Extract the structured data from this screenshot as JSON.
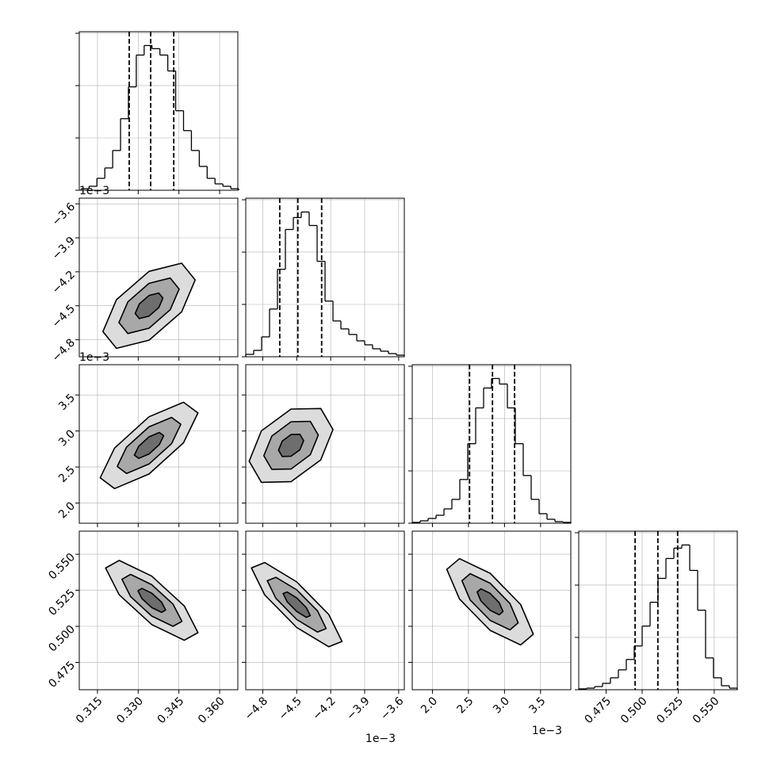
{
  "chart_data": {
    "type": "corner",
    "grid": true,
    "grid_color": "#b0b0b0",
    "line_color": "#000000",
    "contour_fills": [
      "#dcdcdc",
      "#a8a8a8",
      "#6e6e6e"
    ],
    "params": [
      {
        "lim": [
          0.3083,
          0.3667
        ],
        "ticks": [
          {
            "value": 0.315,
            "label": "0.315"
          },
          {
            "value": 0.33,
            "label": "0.330"
          },
          {
            "value": 0.345,
            "label": "0.345"
          },
          {
            "value": 0.36,
            "label": "0.360"
          }
        ]
      },
      {
        "lim": [
          -4.95,
          -3.55
        ],
        "offset": "1e−3",
        "ticks": [
          {
            "value": -4.8,
            "label": "−4.8"
          },
          {
            "value": -4.5,
            "label": "−4.5"
          },
          {
            "value": -4.2,
            "label": "−4.2"
          },
          {
            "value": -3.9,
            "label": "−3.9"
          },
          {
            "value": -3.6,
            "label": "−3.6"
          }
        ]
      },
      {
        "lim": [
          1.72,
          3.92
        ],
        "offset": "1e−3",
        "ticks": [
          {
            "value": 2,
            "label": "2.0"
          },
          2.5,
          {
            "value": 3,
            "label": "3.0"
          },
          3.5
        ]
      },
      {
        "lim": [
          0.456,
          0.566
        ],
        "ticks": [
          {
            "value": 0.475,
            "label": "0.475"
          },
          {
            "value": 0.5,
            "label": "0.500"
          },
          {
            "value": 0.525,
            "label": "0.525"
          },
          {
            "value": 0.55,
            "label": "0.550"
          }
        ]
      }
    ],
    "histograms": [
      {
        "ylim": [
          0,
          1515
        ],
        "yticks": [
          0,
          500,
          1000,
          1500
        ],
        "quantiles": [
          0.3267,
          0.3346,
          0.3431
        ],
        "bins": [
          0.309,
          0.3119,
          0.3148,
          0.3177,
          0.3206,
          0.3235,
          0.3264,
          0.3293,
          0.3322,
          0.3351,
          0.338,
          0.3409,
          0.3438,
          0.3467,
          0.3496,
          0.3525,
          0.3554,
          0.3583,
          0.3612,
          0.3641,
          0.367
        ],
        "counts": [
          15,
          38,
          114,
          213,
          380,
          684,
          988,
          1292,
          1383,
          1353,
          1292,
          1140,
          760,
          570,
          380,
          228,
          114,
          61,
          38,
          15
        ]
      },
      {
        "ylim": [
          0,
          1515
        ],
        "yticks": [
          0,
          500,
          1000,
          1500
        ],
        "quantiles": [
          -4.65,
          -4.49,
          -4.28
        ],
        "bins": [
          -4.95,
          -4.88,
          -4.81,
          -4.74,
          -4.67,
          -4.6,
          -4.53,
          -4.46,
          -4.39,
          -4.32,
          -4.25,
          -4.18,
          -4.11,
          -4.04,
          -3.97,
          -3.9,
          -3.83,
          -3.76,
          -3.69,
          -3.62,
          -3.55
        ],
        "counts": [
          23,
          61,
          190,
          456,
          836,
          1216,
          1330,
          1383,
          1254,
          912,
          532,
          342,
          266,
          213,
          152,
          114,
          76,
          53,
          30,
          15
        ]
      },
      {
        "ylim": [
          0,
          1515
        ],
        "yticks": [
          0,
          500,
          1000,
          1500
        ],
        "quantiles": [
          2.515,
          2.833,
          3.14
        ],
        "bins": [
          1.72,
          1.83,
          1.94,
          2.05,
          2.16,
          2.27,
          2.38,
          2.49,
          2.6,
          2.71,
          2.82,
          2.93,
          3.04,
          3.15,
          3.26,
          3.37,
          3.48,
          3.59,
          3.7,
          3.81,
          3.92
        ],
        "counts": [
          8,
          23,
          46,
          76,
          137,
          228,
          418,
          760,
          1102,
          1292,
          1383,
          1330,
          1102,
          760,
          456,
          228,
          91,
          38,
          15,
          8
        ]
      },
      {
        "ylim": [
          0,
          1515
        ],
        "yticks": [
          0,
          500,
          1000,
          1500
        ],
        "quantiles": [
          0.4951,
          0.5109,
          0.5246
        ],
        "bins": [
          0.456,
          0.4615,
          0.467,
          0.4725,
          0.478,
          0.4835,
          0.489,
          0.4945,
          0.5,
          0.5055,
          0.511,
          0.5165,
          0.522,
          0.5275,
          0.533,
          0.5385,
          0.544,
          0.5495,
          0.555,
          0.5605,
          0.566
        ],
        "counts": [
          8,
          15,
          30,
          61,
          114,
          190,
          289,
          418,
          608,
          836,
          1064,
          1254,
          1353,
          1383,
          1140,
          760,
          304,
          114,
          38,
          15
        ]
      }
    ],
    "pairs": [
      [
        {
          "contours": [
            {
              "x": [
                0.351,
                0.346,
                0.334,
                0.322,
                0.317,
                0.322,
                0.334,
                0.346
              ],
              "y": [
                -4.272,
                -4.124,
                -4.196,
                -4.446,
                -4.728,
                -4.876,
                -4.804,
                -4.554
              ]
            },
            {
              "x": [
                0.3451,
                0.3418,
                0.334,
                0.3262,
                0.3229,
                0.3262,
                0.334,
                0.3418
              ],
              "y": [
                -4.352,
                -4.255,
                -4.302,
                -4.465,
                -4.648,
                -4.745,
                -4.698,
                -4.535
              ]
            },
            {
              "x": [
                0.3391,
                0.3376,
                0.334,
                0.3304,
                0.3289,
                0.3304,
                0.334,
                0.3376
              ],
              "y": [
                -4.432,
                -4.387,
                -4.409,
                -4.484,
                -4.568,
                -4.613,
                -4.591,
                -4.516
              ]
            }
          ]
        }
      ],
      [
        {
          "contours": [
            {
              "x": [
                0.352,
                0.3467,
                0.334,
                0.3213,
                0.316,
                0.3213,
                0.334,
                0.3467
              ],
              "y": [
                3.25,
                3.399,
                3.197,
                2.763,
                2.35,
                2.201,
                2.403,
                2.837
              ]
            },
            {
              "x": [
                0.3457,
                0.3423,
                0.334,
                0.3257,
                0.3223,
                0.3257,
                0.334,
                0.3423
              ],
              "y": [
                3.093,
                3.189,
                3.058,
                2.776,
                2.508,
                2.411,
                2.542,
                2.824
              ]
            },
            {
              "x": [
                0.3394,
                0.3378,
                0.334,
                0.3302,
                0.3286,
                0.3302,
                0.334,
                0.3378
              ],
              "y": [
                2.935,
                2.98,
                2.919,
                2.789,
                2.665,
                2.62,
                2.681,
                2.811
              ]
            }
          ]
        },
        {
          "contours": [
            {
              "x": [
                -4.18,
                -4.288,
                -4.55,
                -4.812,
                -4.92,
                -4.812,
                -4.55,
                -4.288
              ],
              "y": [
                3.02,
                3.312,
                3.304,
                3.001,
                2.58,
                2.288,
                2.296,
                2.599
              ]
            },
            {
              "x": [
                -4.3095,
                -4.38,
                -4.55,
                -4.72,
                -4.7905,
                -4.72,
                -4.55,
                -4.38
              ],
              "y": [
                2.943,
                3.133,
                3.128,
                2.93,
                2.657,
                2.467,
                2.472,
                2.67
              ]
            },
            {
              "x": [
                -4.439,
                -4.472,
                -4.55,
                -4.628,
                -4.661,
                -4.628,
                -4.55,
                -4.472
              ],
              "y": [
                2.866,
                2.954,
                2.951,
                2.86,
                2.734,
                2.646,
                2.649,
                2.74
              ]
            }
          ]
        }
      ],
      [
        {
          "contours": [
            {
              "x": [
                0.352,
                0.347,
                0.335,
                0.323,
                0.318,
                0.323,
                0.335,
                0.347
              ],
              "y": [
                0.4956,
                0.5141,
                0.5348,
                0.5457,
                0.5404,
                0.5219,
                0.5012,
                0.4903
              ]
            },
            {
              "x": [
                0.3461,
                0.3428,
                0.335,
                0.3272,
                0.324,
                0.3272,
                0.335,
                0.3428
              ],
              "y": [
                0.5034,
                0.5154,
                0.5289,
                0.536,
                0.5326,
                0.5206,
                0.5071,
                0.5
              ]
            },
            {
              "x": [
                0.3401,
                0.3386,
                0.335,
                0.3314,
                0.3299,
                0.3314,
                0.335,
                0.3386
              ],
              "y": [
                0.5113,
                0.5168,
                0.523,
                0.5263,
                0.5247,
                0.5192,
                0.513,
                0.5097
              ]
            }
          ]
        },
        {
          "contours": [
            {
              "x": [
                -4.1,
                -4.217,
                -4.5,
                -4.783,
                -4.9,
                -4.783,
                -4.5,
                -4.217
              ],
              "y": [
                0.4895,
                0.5082,
                0.5308,
                0.5442,
                0.5405,
                0.5218,
                0.4992,
                0.4858
              ]
            },
            {
              "x": [
                -4.24,
                -4.316,
                -4.5,
                -4.684,
                -4.76,
                -4.684,
                -4.5,
                -4.316
              ],
              "y": [
                0.4984,
                0.5106,
                0.5253,
                0.534,
                0.5316,
                0.5194,
                0.5047,
                0.496
              ]
            },
            {
              "x": [
                -4.38,
                -4.415,
                -4.5,
                -4.585,
                -4.62,
                -4.585,
                -4.5,
                -4.415
              ],
              "y": [
                0.5074,
                0.5129,
                0.5197,
                0.5238,
                0.5227,
                0.5171,
                0.5103,
                0.5062
              ]
            }
          ]
        },
        {
          "contours": [
            {
              "x": [
                3.4,
                3.224,
                2.8,
                2.376,
                2.2,
                2.376,
                2.8,
                3.224
              ],
              "y": [
                0.4945,
                0.5151,
                0.5368,
                0.5469,
                0.5395,
                0.5189,
                0.4972,
                0.4871
              ]
            },
            {
              "x": [
                3.19,
                3.076,
                2.8,
                2.524,
                2.41,
                2.524,
                2.8,
                3.076
              ],
              "y": [
                0.5024,
                0.5158,
                0.5299,
                0.5365,
                0.5316,
                0.5182,
                0.5041,
                0.4975
              ]
            },
            {
              "x": [
                2.98,
                2.927,
                2.8,
                2.673,
                2.62,
                2.673,
                2.8,
                2.927
              ],
              "y": [
                0.5103,
                0.5164,
                0.5229,
                0.526,
                0.5238,
                0.5176,
                0.5111,
                0.508
              ]
            }
          ]
        }
      ]
    ]
  }
}
